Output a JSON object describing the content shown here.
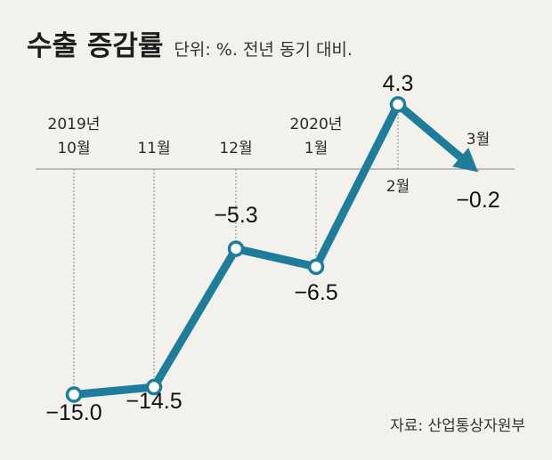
{
  "title": "수출 증감률",
  "subtitle": "단위: %. 전년 동기 대비.",
  "source": "자료: 산업통상자원부",
  "colors": {
    "line": "#1f7d9c",
    "background": "#f2f1ec",
    "axis": "#888888"
  },
  "chart_data": {
    "type": "line",
    "title": "수출 증감률",
    "ylabel": "단위: %. 전년 동기 대비.",
    "categories": [
      [
        "2019년",
        "10월"
      ],
      [
        "11월"
      ],
      [
        "12월"
      ],
      [
        "2020년",
        "1월"
      ],
      [
        "2월"
      ],
      [
        "3월"
      ]
    ],
    "values": [
      -15.0,
      -14.5,
      -5.3,
      -6.5,
      4.3,
      -0.2
    ],
    "data_labels": [
      "−15.0",
      "−14.5",
      "−5.3",
      "−6.5",
      "4.3",
      "−0.2"
    ],
    "ylim": [
      -16,
      5
    ],
    "grid": false,
    "last_point_arrow": true
  }
}
